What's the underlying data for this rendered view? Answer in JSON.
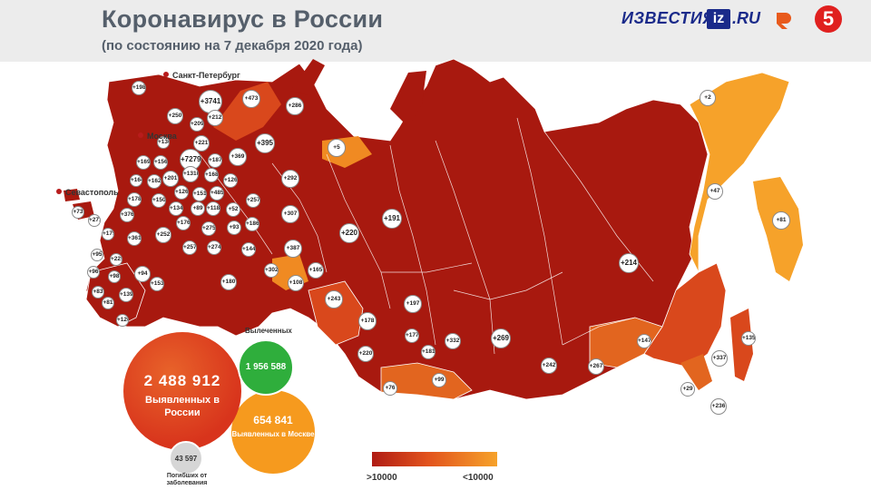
{
  "header": {
    "title": "Коронавирус в России",
    "subtitle": "(по состоянию на 7 декабря 2020 года)"
  },
  "logos": {
    "izvestia": "ИЗВЕСТИЯ",
    "iz": "iz",
    "ru": ".RU",
    "five": "5"
  },
  "cities": {
    "spb": "Санкт-Петербург",
    "moscow": "Москва",
    "sevastopol": "Севастополь"
  },
  "stats": {
    "total_cases": "2 488 912",
    "total_label": "Выявленных в России",
    "cured_label": "Вылеченных",
    "cured": "1 956 588",
    "moscow_cases": "654 841",
    "moscow_label": "Выявленных в Москве",
    "deaths": "43 597",
    "deaths_label": "Погибших от заболевания"
  },
  "legend": {
    "low": ">10000",
    "high": "<10000",
    "colors": [
      "#b01c14",
      "#e2531d",
      "#f6a22a"
    ]
  },
  "colors": {
    "dark": "#a8190f",
    "mid": "#d9481c",
    "light": "#f6a22a"
  },
  "regions": [
    {
      "v": "+198"
    },
    {
      "v": "+3741"
    },
    {
      "v": "+473"
    },
    {
      "v": "+286"
    },
    {
      "v": "+250"
    },
    {
      "v": "+212"
    },
    {
      "v": "+209"
    },
    {
      "v": "+130"
    },
    {
      "v": "+221"
    },
    {
      "v": "+395"
    },
    {
      "v": "+5"
    },
    {
      "v": "+169"
    },
    {
      "v": "+156"
    },
    {
      "v": "+7279"
    },
    {
      "v": "+187"
    },
    {
      "v": "+369"
    },
    {
      "v": "+164"
    },
    {
      "v": "+201"
    },
    {
      "v": "+1310"
    },
    {
      "v": "+168"
    },
    {
      "v": "+126"
    },
    {
      "v": "+292"
    },
    {
      "v": "+162"
    },
    {
      "v": "+126"
    },
    {
      "v": "+151"
    },
    {
      "v": "+485"
    },
    {
      "v": "+178"
    },
    {
      "v": "+150"
    },
    {
      "v": "+134"
    },
    {
      "v": "+89"
    },
    {
      "v": "+118"
    },
    {
      "v": "+52"
    },
    {
      "v": "+257"
    },
    {
      "v": "+73"
    },
    {
      "v": "+376"
    },
    {
      "v": "+176"
    },
    {
      "v": "+275"
    },
    {
      "v": "+93"
    },
    {
      "v": "+186"
    },
    {
      "v": "+307"
    },
    {
      "v": "+271"
    },
    {
      "v": "+252"
    },
    {
      "v": "+179"
    },
    {
      "v": "+361"
    },
    {
      "v": "+257"
    },
    {
      "v": "+274"
    },
    {
      "v": "+144"
    },
    {
      "v": "+387"
    },
    {
      "v": "+220"
    },
    {
      "v": "+191"
    },
    {
      "v": "+95"
    },
    {
      "v": "+229"
    },
    {
      "v": "+302"
    },
    {
      "v": "+96"
    },
    {
      "v": "+94"
    },
    {
      "v": "+165"
    },
    {
      "v": "+98"
    },
    {
      "v": "+153"
    },
    {
      "v": "+180"
    },
    {
      "v": "+108"
    },
    {
      "v": "+83"
    },
    {
      "v": "+139"
    },
    {
      "v": "+243"
    },
    {
      "v": "+81"
    },
    {
      "v": "+197"
    },
    {
      "v": "+120"
    },
    {
      "v": "+178"
    },
    {
      "v": "+177"
    },
    {
      "v": "+332"
    },
    {
      "v": "+269"
    },
    {
      "v": "+181"
    },
    {
      "v": "+220"
    },
    {
      "v": "+99"
    },
    {
      "v": "+242"
    },
    {
      "v": "+267"
    },
    {
      "v": "+76"
    },
    {
      "v": "+214"
    },
    {
      "v": "+2"
    },
    {
      "v": "+47"
    },
    {
      "v": "+81"
    },
    {
      "v": "+147"
    },
    {
      "v": "+135"
    },
    {
      "v": "+337"
    },
    {
      "v": "+29"
    },
    {
      "v": "+236"
    }
  ]
}
